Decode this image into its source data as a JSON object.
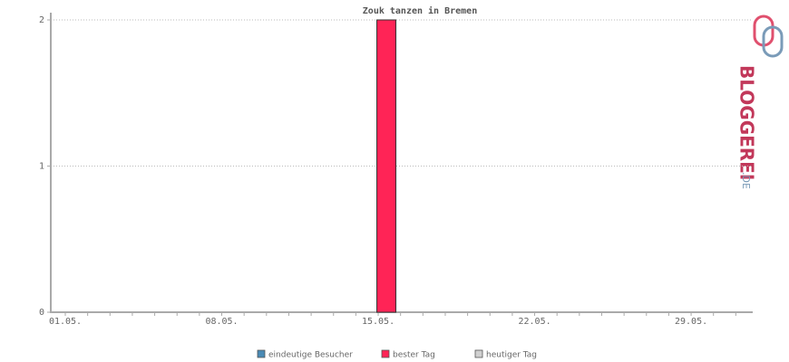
{
  "chart_data": {
    "type": "bar",
    "title": "Zouk tanzen in Bremen",
    "categories": [
      "01.05.",
      null,
      null,
      null,
      null,
      null,
      null,
      "08.05.",
      null,
      null,
      null,
      null,
      null,
      null,
      "15.05.",
      null,
      null,
      null,
      null,
      null,
      null,
      "22.05.",
      null,
      null,
      null,
      null,
      null,
      null,
      "29.05.",
      null,
      null
    ],
    "series": [
      {
        "name": "eindeutige Besucher",
        "color": "#4a8ab5",
        "values": [
          0,
          0,
          0,
          0,
          0,
          0,
          0,
          0,
          0,
          0,
          0,
          0,
          0,
          0,
          0,
          0,
          0,
          0,
          0,
          0,
          0,
          0,
          0,
          0,
          0,
          0,
          0,
          0,
          0,
          0,
          0
        ]
      },
      {
        "name": "bester Tag",
        "color": "#ff2456",
        "values": [
          null,
          null,
          null,
          null,
          null,
          null,
          null,
          null,
          null,
          null,
          null,
          null,
          null,
          null,
          2,
          null,
          null,
          null,
          null,
          null,
          null,
          null,
          null,
          null,
          null,
          null,
          null,
          null,
          null,
          null,
          null
        ]
      },
      {
        "name": "heutiger Tag",
        "color": "#d0d0d0",
        "values": [
          null,
          null,
          null,
          null,
          null,
          null,
          null,
          null,
          null,
          null,
          null,
          null,
          null,
          null,
          null,
          null,
          null,
          null,
          null,
          null,
          null,
          null,
          null,
          null,
          null,
          null,
          null,
          null,
          null,
          null,
          null
        ]
      }
    ],
    "ylim": [
      0,
      2
    ],
    "yticks": [
      0,
      1,
      2
    ],
    "grid": true,
    "watermark": {
      "text": "BLOGGEREI",
      "suffix": ".DE"
    }
  }
}
